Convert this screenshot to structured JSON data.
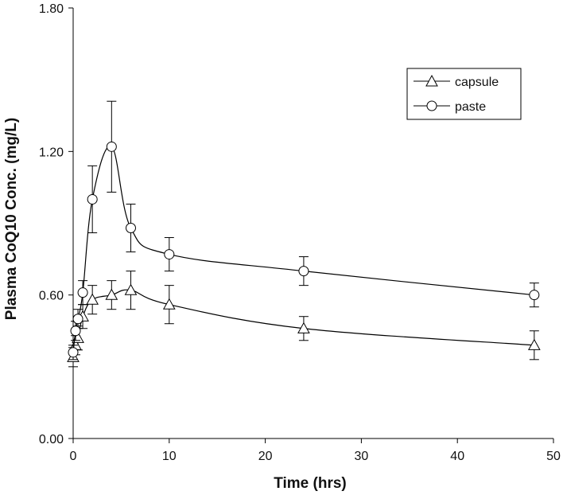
{
  "chart_data": {
    "type": "line",
    "xlabel": "Time (hrs)",
    "ylabel": "Plasma CoQ10 Conc. (mg/L)",
    "xlim": [
      0,
      50
    ],
    "ylim": [
      0,
      1.8
    ],
    "x_ticks": [
      0,
      10,
      20,
      30,
      40,
      50
    ],
    "y_ticks": [
      0,
      0.6,
      1.2,
      1.8
    ],
    "x_tick_labels": [
      "0",
      "10",
      "20",
      "30",
      "40",
      "50"
    ],
    "y_tick_labels": [
      "0.00",
      "0.60",
      "1.20",
      "1.80"
    ],
    "grid": false,
    "legend_position": "top-right",
    "series": [
      {
        "name": "capsule",
        "marker": "triangle",
        "points": [
          {
            "x": 0,
            "y": 0.34,
            "err": 0.04
          },
          {
            "x": 0.25,
            "y": 0.39,
            "err": 0.04
          },
          {
            "x": 0.5,
            "y": 0.42,
            "err": 0.05
          },
          {
            "x": 1,
            "y": 0.51,
            "err": 0.05
          },
          {
            "x": 2,
            "y": 0.58,
            "err": 0.06
          },
          {
            "x": 4,
            "y": 0.6,
            "err": 0.06
          },
          {
            "x": 6,
            "y": 0.62,
            "err": 0.08
          },
          {
            "x": 10,
            "y": 0.56,
            "err": 0.08
          },
          {
            "x": 24,
            "y": 0.46,
            "err": 0.05
          },
          {
            "x": 48,
            "y": 0.39,
            "err": 0.06
          }
        ]
      },
      {
        "name": "paste",
        "marker": "circle",
        "points": [
          {
            "x": 0,
            "y": 0.36,
            "err": 0.03
          },
          {
            "x": 0.25,
            "y": 0.45,
            "err": 0.04
          },
          {
            "x": 0.5,
            "y": 0.5,
            "err": 0.04
          },
          {
            "x": 1,
            "y": 0.61,
            "err": 0.05
          },
          {
            "x": 2,
            "y": 1.0,
            "err": 0.14
          },
          {
            "x": 4,
            "y": 1.22,
            "err": 0.19
          },
          {
            "x": 6,
            "y": 0.88,
            "err": 0.1
          },
          {
            "x": 10,
            "y": 0.77,
            "err": 0.07
          },
          {
            "x": 24,
            "y": 0.7,
            "err": 0.06
          },
          {
            "x": 48,
            "y": 0.6,
            "err": 0.05
          }
        ]
      }
    ]
  }
}
